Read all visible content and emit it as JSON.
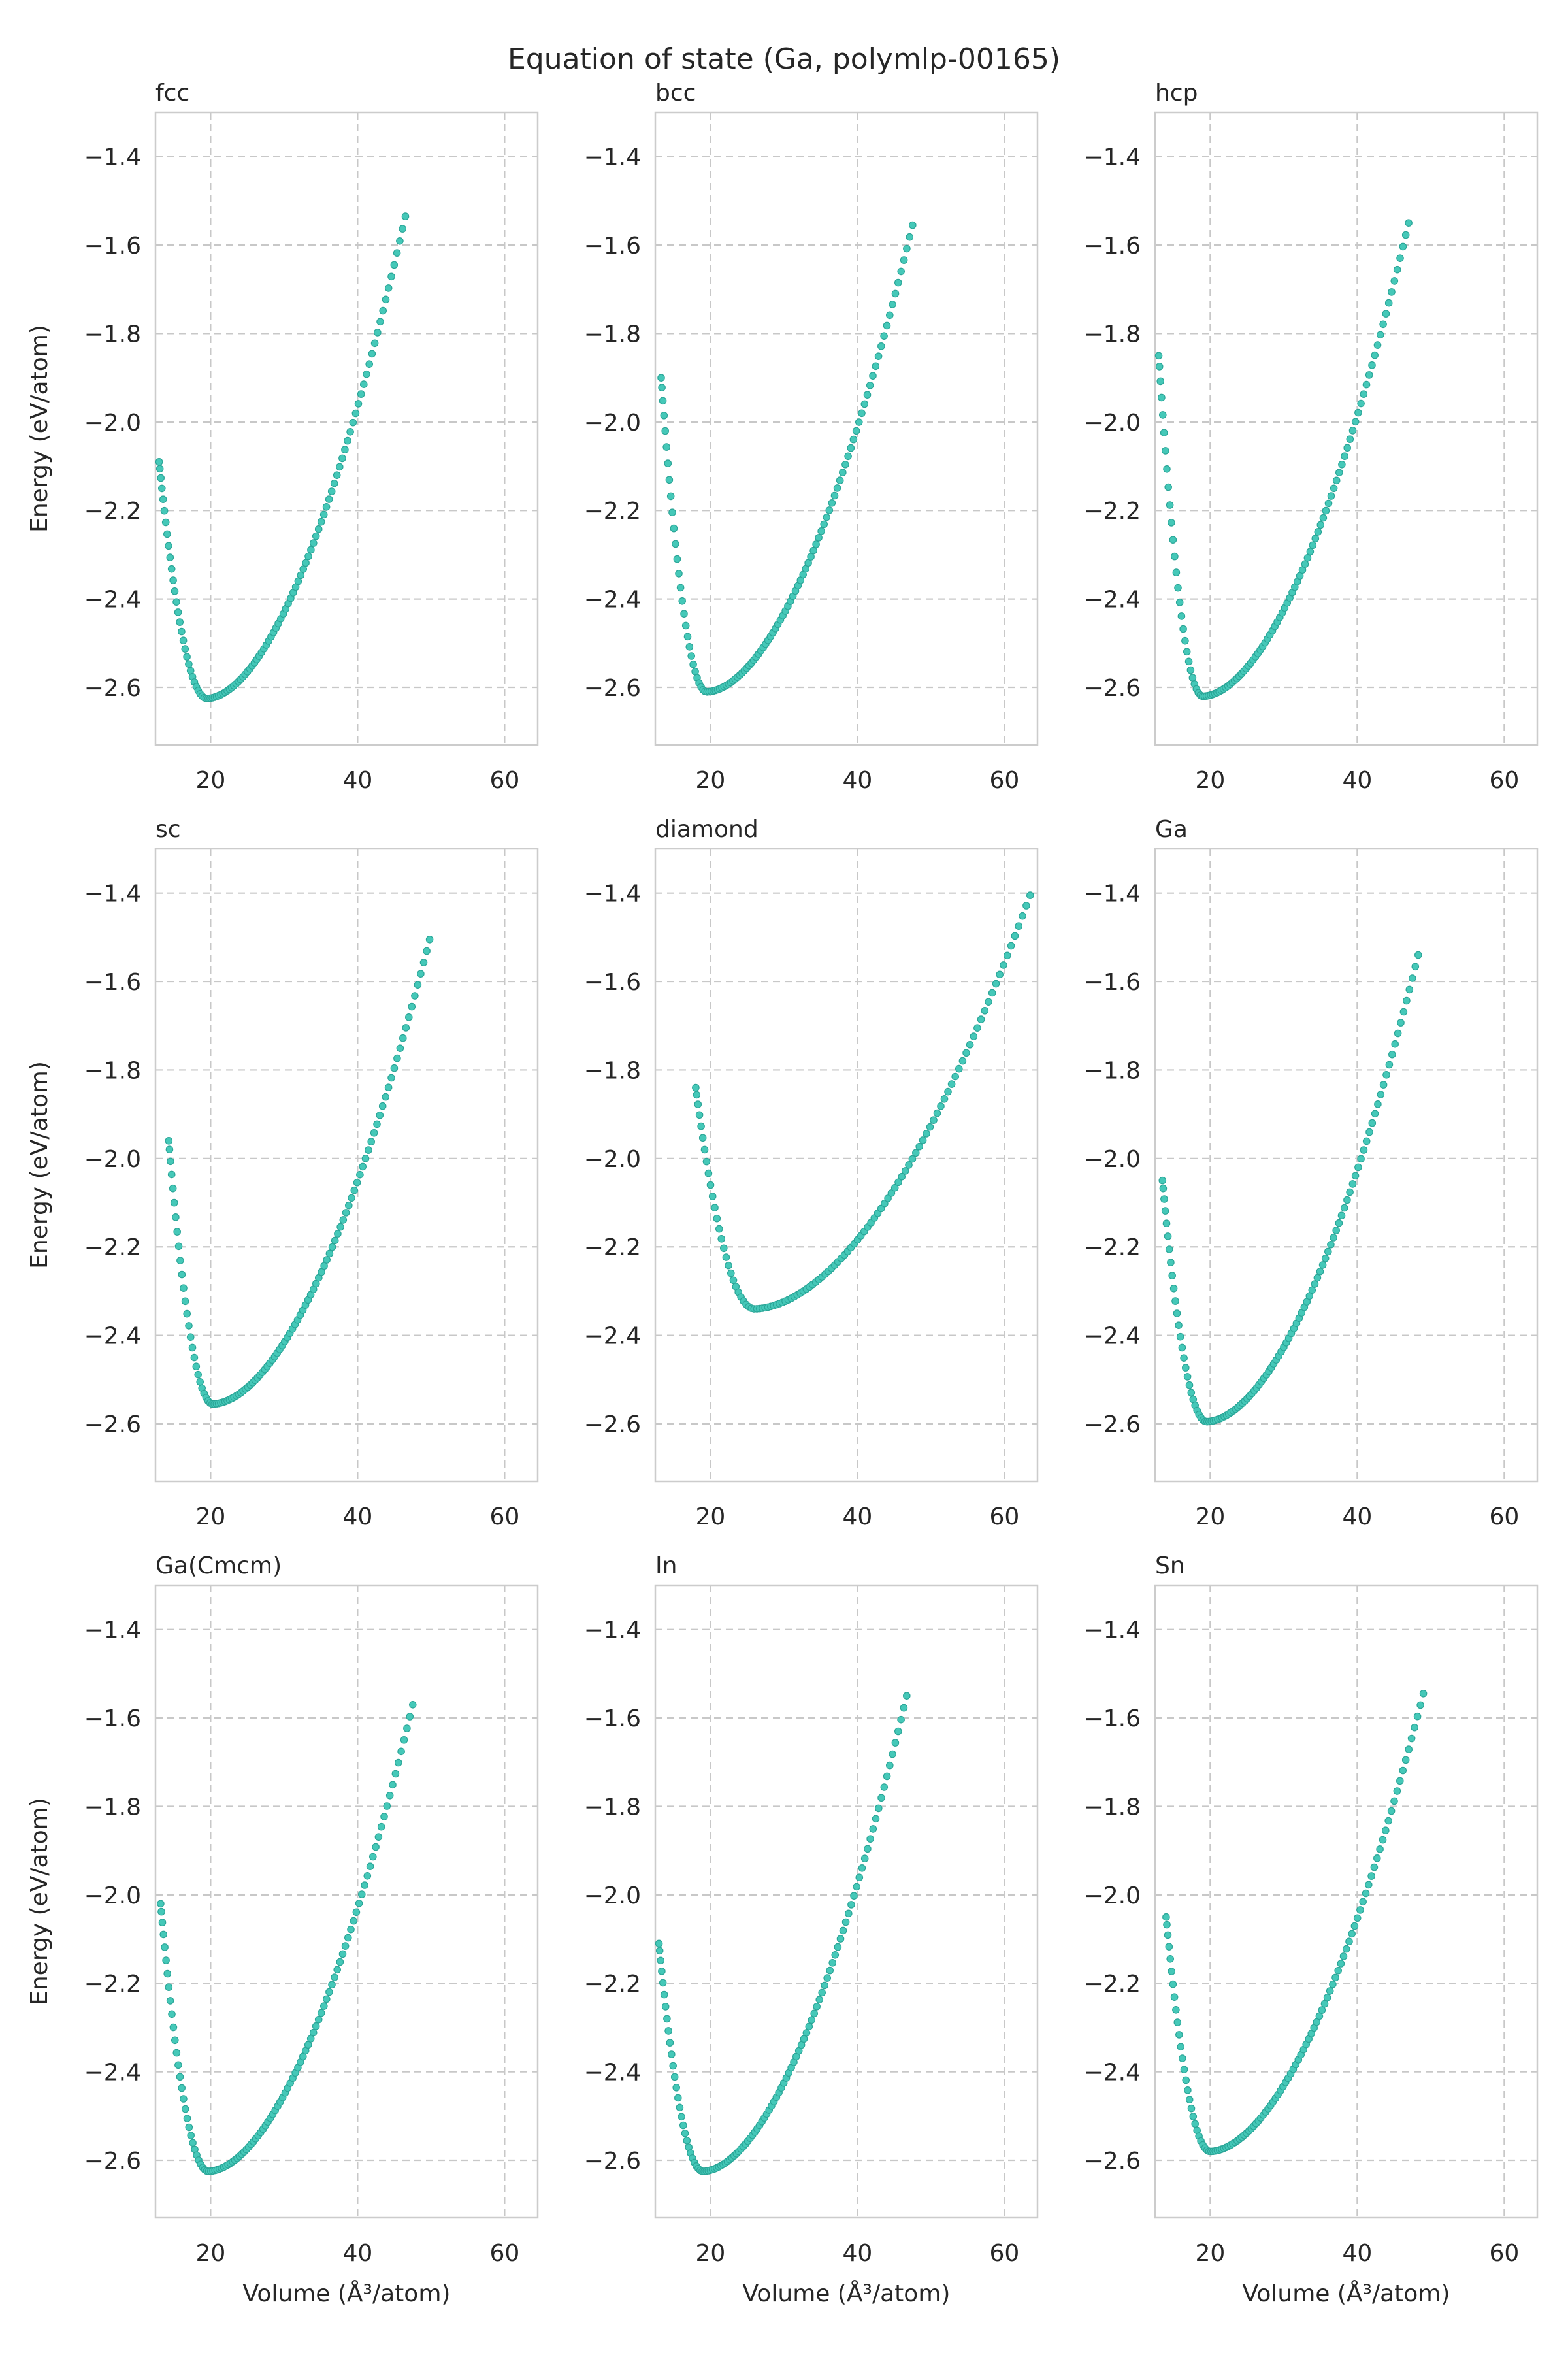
{
  "figure": {
    "title": "Equation of state (Ga, polymlp-00165)",
    "xlabel": "Volume (Å³/atom)",
    "ylabel": "Energy (eV/atom)",
    "point_color": "#45c8b8",
    "point_edge_color": "#2aa597",
    "grid_color": "#c8c8c8",
    "spine_color": "#cccccc"
  },
  "chart_data": [
    {
      "type": "scatter",
      "title": "fcc",
      "xlim": [
        12.5,
        64.5
      ],
      "ylim": [
        -2.73,
        -1.3
      ],
      "xticks": [
        20,
        40,
        60
      ],
      "yticks": [
        -1.4,
        -1.6,
        -1.8,
        -2.0,
        -2.2,
        -2.4,
        -2.6
      ],
      "grid": true,
      "curve": {
        "v_start": 13.0,
        "v_end": 46.5,
        "v_min": 19.5,
        "e_min": -2.625,
        "e_start": -2.09,
        "e_end": -1.535
      }
    },
    {
      "type": "scatter",
      "title": "bcc",
      "xlim": [
        12.5,
        64.5
      ],
      "ylim": [
        -2.73,
        -1.3
      ],
      "xticks": [
        20,
        40,
        60
      ],
      "yticks": [
        -1.4,
        -1.6,
        -1.8,
        -2.0,
        -2.2,
        -2.4,
        -2.6
      ],
      "grid": true,
      "curve": {
        "v_start": 13.3,
        "v_end": 47.5,
        "v_min": 19.5,
        "e_min": -2.61,
        "e_start": -1.9,
        "e_end": -1.555
      }
    },
    {
      "type": "scatter",
      "title": "hcp",
      "xlim": [
        12.5,
        64.5
      ],
      "ylim": [
        -2.73,
        -1.3
      ],
      "xticks": [
        20,
        40,
        60
      ],
      "yticks": [
        -1.4,
        -1.6,
        -1.8,
        -2.0,
        -2.2,
        -2.4,
        -2.6
      ],
      "grid": true,
      "curve": {
        "v_start": 13.0,
        "v_end": 47.0,
        "v_min": 19.0,
        "e_min": -2.62,
        "e_start": -1.85,
        "e_end": -1.55
      }
    },
    {
      "type": "scatter",
      "title": "sc",
      "xlim": [
        12.5,
        64.5
      ],
      "ylim": [
        -2.73,
        -1.3
      ],
      "xticks": [
        20,
        40,
        60
      ],
      "yticks": [
        -1.4,
        -1.6,
        -1.8,
        -2.0,
        -2.2,
        -2.4,
        -2.6
      ],
      "grid": true,
      "curve": {
        "v_start": 14.3,
        "v_end": 49.8,
        "v_min": 20.3,
        "e_min": -2.555,
        "e_start": -1.96,
        "e_end": -1.505
      }
    },
    {
      "type": "scatter",
      "title": "diamond",
      "xlim": [
        12.5,
        64.5
      ],
      "ylim": [
        -2.73,
        -1.3
      ],
      "xticks": [
        20,
        40,
        60
      ],
      "yticks": [
        -1.4,
        -1.6,
        -1.8,
        -2.0,
        -2.2,
        -2.4,
        -2.6
      ],
      "grid": true,
      "curve": {
        "v_start": 18.0,
        "v_end": 63.5,
        "v_min": 26.0,
        "e_min": -2.34,
        "e_start": -1.84,
        "e_end": -1.405
      }
    },
    {
      "type": "scatter",
      "title": "Ga",
      "xlim": [
        12.5,
        64.5
      ],
      "ylim": [
        -2.73,
        -1.3
      ],
      "xticks": [
        20,
        40,
        60
      ],
      "yticks": [
        -1.4,
        -1.6,
        -1.8,
        -2.0,
        -2.2,
        -2.4,
        -2.6
      ],
      "grid": true,
      "curve": {
        "v_start": 13.5,
        "v_end": 48.3,
        "v_min": 19.5,
        "e_min": -2.595,
        "e_start": -2.05,
        "e_end": -1.54
      }
    },
    {
      "type": "scatter",
      "title": "Ga(Cmcm)",
      "xlim": [
        12.5,
        64.5
      ],
      "ylim": [
        -2.73,
        -1.3
      ],
      "xticks": [
        20,
        40,
        60
      ],
      "yticks": [
        -1.4,
        -1.6,
        -1.8,
        -2.0,
        -2.2,
        -2.4,
        -2.6
      ],
      "grid": true,
      "curve": {
        "v_start": 13.2,
        "v_end": 47.5,
        "v_min": 19.7,
        "e_min": -2.625,
        "e_start": -2.02,
        "e_end": -1.57
      }
    },
    {
      "type": "scatter",
      "title": "In",
      "xlim": [
        12.5,
        64.5
      ],
      "ylim": [
        -2.73,
        -1.3
      ],
      "xticks": [
        20,
        40,
        60
      ],
      "yticks": [
        -1.4,
        -1.6,
        -1.8,
        -2.0,
        -2.2,
        -2.4,
        -2.6
      ],
      "grid": true,
      "curve": {
        "v_start": 13.0,
        "v_end": 46.7,
        "v_min": 19.0,
        "e_min": -2.625,
        "e_start": -2.11,
        "e_end": -1.55
      }
    },
    {
      "type": "scatter",
      "title": "Sn",
      "xlim": [
        12.5,
        64.5
      ],
      "ylim": [
        -2.73,
        -1.3
      ],
      "xticks": [
        20,
        40,
        60
      ],
      "yticks": [
        -1.4,
        -1.6,
        -1.8,
        -2.0,
        -2.2,
        -2.4,
        -2.6
      ],
      "grid": true,
      "curve": {
        "v_start": 14.0,
        "v_end": 49.0,
        "v_min": 20.0,
        "e_min": -2.58,
        "e_start": -2.05,
        "e_end": -1.545
      }
    }
  ]
}
